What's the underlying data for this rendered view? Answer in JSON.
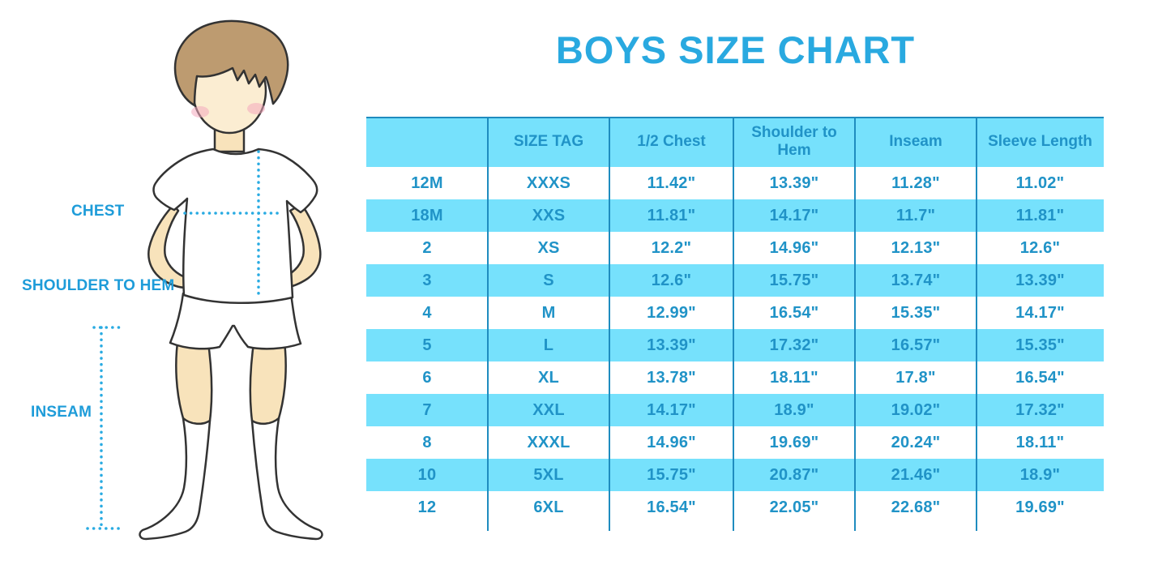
{
  "title": "BOYS SIZE CHART",
  "figure": {
    "description": "boy-in-white-tshirt-shorts-and-knee-socks-illustration",
    "labels": {
      "chest": "CHEST",
      "shoulder_to_hem": "SHOULDER TO HEM",
      "inseam": "INSEAM"
    }
  },
  "chart_data": {
    "type": "table",
    "title": "BOYS SIZE CHART",
    "columns": [
      "",
      "SIZE TAG",
      "1/2 Chest",
      "Shoulder to Hem",
      "Inseam",
      "Sleeve Length"
    ],
    "rows": [
      [
        "12M",
        "XXXS",
        "11.42\"",
        "13.39\"",
        "11.28\"",
        "11.02\""
      ],
      [
        "18M",
        "XXS",
        "11.81\"",
        "14.17\"",
        "11.7\"",
        "11.81\""
      ],
      [
        "2",
        "XS",
        "12.2\"",
        "14.96\"",
        "12.13\"",
        "12.6\""
      ],
      [
        "3",
        "S",
        "12.6\"",
        "15.75\"",
        "13.74\"",
        "13.39\""
      ],
      [
        "4",
        "M",
        "12.99\"",
        "16.54\"",
        "15.35\"",
        "14.17\""
      ],
      [
        "5",
        "L",
        "13.39\"",
        "17.32\"",
        "16.57\"",
        "15.35\""
      ],
      [
        "6",
        "XL",
        "13.78\"",
        "18.11\"",
        "17.8\"",
        "16.54\""
      ],
      [
        "7",
        "XXL",
        "14.17\"",
        "18.9\"",
        "19.02\"",
        "17.32\""
      ],
      [
        "8",
        "XXXL",
        "14.96\"",
        "19.69\"",
        "20.24\"",
        "18.11\""
      ],
      [
        "10",
        "5XL",
        "15.75\"",
        "20.87\"",
        "21.46\"",
        "18.9\""
      ],
      [
        "12",
        "6XL",
        "16.54\"",
        "22.05\"",
        "22.68\"",
        "19.69\""
      ]
    ],
    "row_stripe_pattern": "white, light-blue alternating; header light-blue",
    "layout": {
      "gridlines": "vertical-only",
      "header_position": "top"
    }
  },
  "colors": {
    "title_blue": "#29A9E0",
    "label_blue": "#1E9CD9",
    "table_row_blue": "#76E1FC",
    "table_text_blue": "#2093C7",
    "divider_blue": "#1F8CBF",
    "dotted_line_blue": "#29ABE2",
    "skin": "#F8E3BB",
    "hair_brown": "#BD9B70"
  }
}
